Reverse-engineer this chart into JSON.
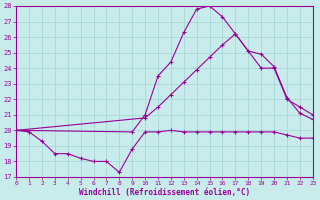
{
  "xlabel": "Windchill (Refroidissement éolien,°C)",
  "background_color": "#c8ecec",
  "grid_color": "#a8d8d8",
  "line_color": "#990099",
  "xlim": [
    0,
    23
  ],
  "ylim": [
    17,
    28
  ],
  "yticks": [
    17,
    18,
    19,
    20,
    21,
    22,
    23,
    24,
    25,
    26,
    27,
    28
  ],
  "xticks": [
    0,
    1,
    2,
    3,
    4,
    5,
    6,
    7,
    8,
    9,
    10,
    11,
    12,
    13,
    14,
    15,
    16,
    17,
    18,
    19,
    20,
    21,
    22,
    23
  ],
  "line1_x": [
    0,
    1,
    2,
    3,
    4,
    5,
    6,
    7,
    8,
    9,
    10,
    11,
    12,
    13,
    14,
    15,
    16,
    17,
    18,
    19,
    20,
    21,
    22,
    23
  ],
  "line1_y": [
    20.0,
    19.9,
    19.3,
    18.5,
    18.5,
    18.2,
    18.0,
    18.0,
    17.3,
    18.8,
    19.9,
    19.9,
    20.0,
    19.9,
    19.9,
    19.9,
    19.9,
    19.9,
    19.9,
    19.9,
    19.9,
    19.7,
    19.5,
    19.5
  ],
  "line2_x": [
    0,
    10,
    11,
    12,
    13,
    14,
    15,
    16,
    17,
    19,
    20,
    21,
    22,
    23
  ],
  "line2_y": [
    20.0,
    20.8,
    21.5,
    22.3,
    23.1,
    23.9,
    24.7,
    25.5,
    26.2,
    24.0,
    24.0,
    22.0,
    21.5,
    21.0
  ],
  "line3_x": [
    0,
    9,
    10,
    11,
    12,
    13,
    14,
    15,
    16,
    17,
    18,
    19,
    20,
    21,
    22,
    23
  ],
  "line3_y": [
    20.0,
    19.9,
    21.0,
    23.5,
    24.4,
    26.3,
    27.8,
    28.0,
    27.3,
    26.2,
    25.1,
    24.9,
    24.1,
    22.1,
    21.1,
    20.7
  ]
}
